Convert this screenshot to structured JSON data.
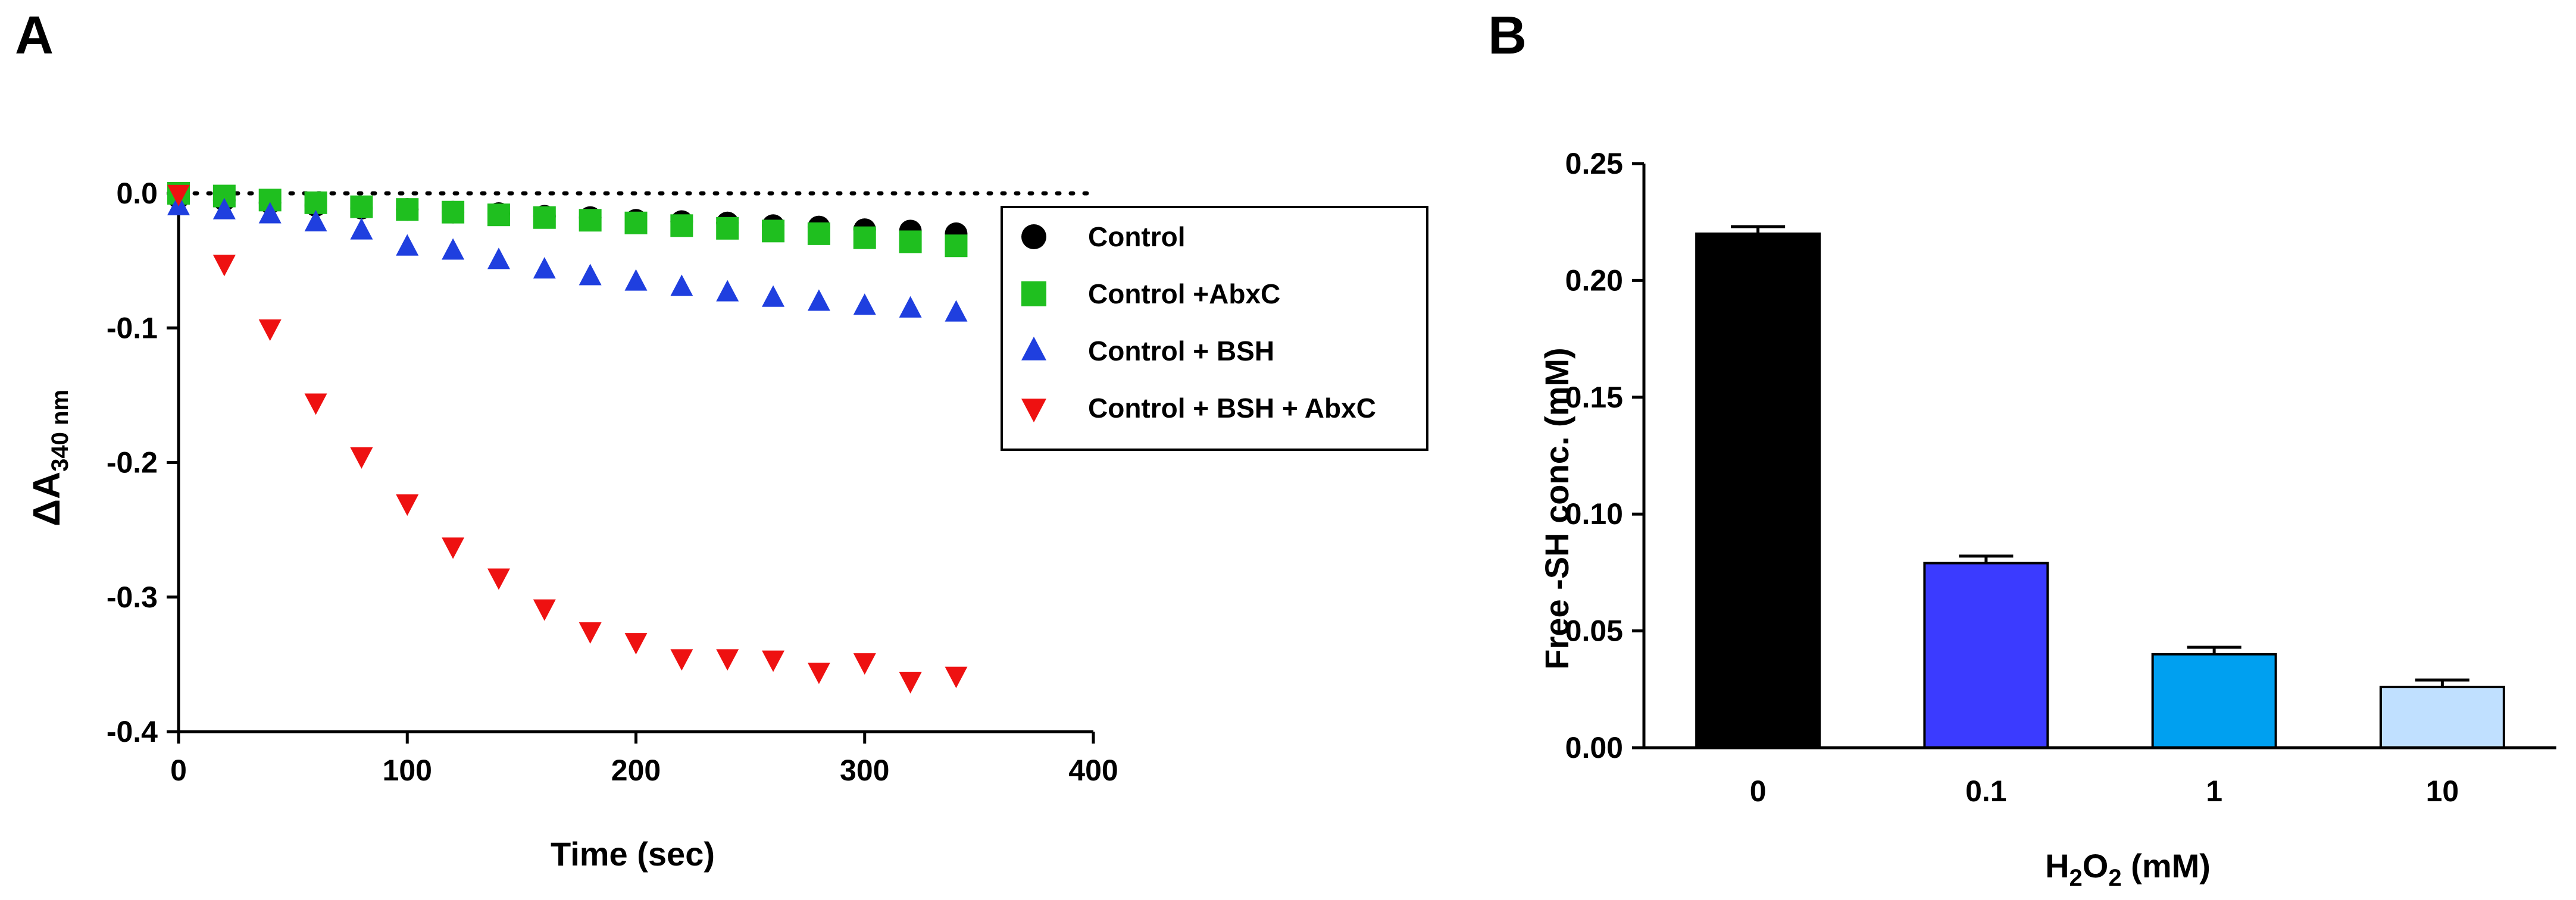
{
  "panels": {
    "a": "A",
    "b": "B"
  },
  "chart_data": [
    {
      "type": "scatter",
      "panel": "A",
      "title": "",
      "xlabel": "Time (sec)",
      "ylabel_prefix": "ΔA",
      "ylabel_sub": "340 nm",
      "xlim": [
        0,
        400
      ],
      "ylim": [
        -0.4,
        0.0
      ],
      "xticks": [
        "0",
        "100",
        "200",
        "300",
        "400"
      ],
      "yticks": [
        "0.0",
        "-0.1",
        "-0.2",
        "-0.3",
        "-0.4"
      ],
      "xtick_values": [
        0,
        100,
        200,
        300,
        400
      ],
      "ytick_values": [
        0.0,
        -0.1,
        -0.2,
        -0.3,
        -0.4
      ],
      "zero_line": "dotted",
      "legend_position": "top-right",
      "x": [
        0,
        20,
        40,
        60,
        80,
        100,
        120,
        140,
        160,
        180,
        200,
        220,
        240,
        260,
        280,
        300,
        320,
        340
      ],
      "series": [
        {
          "name": "Control",
          "marker": "circle",
          "color": "#000000",
          "values": [
            -0.003,
            -0.005,
            -0.007,
            -0.009,
            -0.011,
            -0.012,
            -0.014,
            -0.015,
            -0.017,
            -0.018,
            -0.02,
            -0.021,
            -0.022,
            -0.024,
            -0.025,
            -0.027,
            -0.028,
            -0.03
          ]
        },
        {
          "name": "Control +AbxC",
          "marker": "square",
          "color": "#1fbf1f",
          "values": [
            0.0,
            -0.002,
            -0.005,
            -0.007,
            -0.01,
            -0.012,
            -0.014,
            -0.016,
            -0.018,
            -0.02,
            -0.022,
            -0.024,
            -0.026,
            -0.028,
            -0.03,
            -0.033,
            -0.036,
            -0.039
          ]
        },
        {
          "name": "Control + BSH",
          "marker": "triangle-up",
          "color": "#1f3fdf",
          "values": [
            -0.01,
            -0.013,
            -0.016,
            -0.022,
            -0.028,
            -0.04,
            -0.043,
            -0.05,
            -0.057,
            -0.062,
            -0.066,
            -0.07,
            -0.074,
            -0.078,
            -0.081,
            -0.084,
            -0.086,
            -0.089
          ]
        },
        {
          "name": "Control + BSH + AbxC",
          "marker": "triangle-down",
          "color": "#ee1111",
          "values": [
            0.0,
            -0.052,
            -0.1,
            -0.155,
            -0.195,
            -0.23,
            -0.262,
            -0.285,
            -0.308,
            -0.325,
            -0.333,
            -0.345,
            -0.345,
            -0.346,
            -0.355,
            -0.348,
            -0.362,
            -0.358
          ]
        }
      ]
    },
    {
      "type": "bar",
      "panel": "B",
      "title": "",
      "xlabel_main": "H",
      "xlabel_sub": "2",
      "xlabel_mid": "O",
      "xlabel_sub2": "2",
      "xlabel_tail": " (mM)",
      "ylabel": "Free  -SH conc. (mM)",
      "ylim": [
        0,
        0.25
      ],
      "yticks": [
        "0.00",
        "0.05",
        "0.10",
        "0.15",
        "0.20",
        "0.25"
      ],
      "ytick_values": [
        0.0,
        0.05,
        0.1,
        0.15,
        0.2,
        0.25
      ],
      "categories": [
        "0",
        "0.1",
        "1",
        "10"
      ],
      "values": [
        0.22,
        0.079,
        0.04,
        0.026
      ],
      "errors": [
        0.003,
        0.003,
        0.003,
        0.003
      ],
      "colors": [
        "#000000",
        "#3b3bff",
        "#00a0f0",
        "#c0e0ff"
      ]
    }
  ]
}
